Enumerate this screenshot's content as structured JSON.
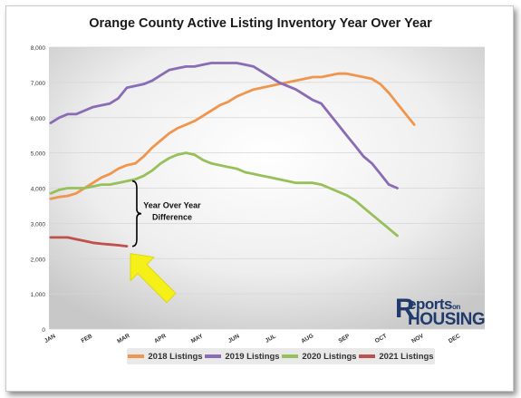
{
  "chart_data": {
    "type": "line",
    "title": "Orange County Active Listing Inventory Year Over Year",
    "x_tick_labels": [
      "JAN",
      "FEB",
      "MAR",
      "APR",
      "MAY",
      "JUN",
      "JUL",
      "AUG",
      "SEP",
      "OCT",
      "NOV",
      "DEC"
    ],
    "ylim": [
      0,
      8000
    ],
    "y_ticks": [
      0,
      1000,
      2000,
      3000,
      4000,
      5000,
      6000,
      7000,
      8000
    ],
    "y_tick_labels": [
      "0",
      "1,000",
      "2,000",
      "3,000",
      "4,000",
      "5,000",
      "6,000",
      "7,000",
      "8,000"
    ],
    "x_points_per_month": 4.35,
    "grid": true,
    "legend_position": "bottom",
    "series": [
      {
        "name": "2018 Listings",
        "color": "#f0954e",
        "values": [
          3700,
          3750,
          3780,
          3850,
          4000,
          4150,
          4300,
          4400,
          4550,
          4650,
          4700,
          4900,
          5150,
          5350,
          5550,
          5700,
          5800,
          5900,
          6050,
          6200,
          6350,
          6450,
          6600,
          6700,
          6800,
          6850,
          6900,
          6950,
          7000,
          7050,
          7100,
          7150,
          7150,
          7200,
          7250,
          7250,
          7200,
          7150,
          7100,
          6950,
          6700,
          6400,
          6100,
          5800
        ]
      },
      {
        "name": "2019 Listings",
        "color": "#8a6bb5",
        "values": [
          5850,
          6000,
          6100,
          6100,
          6200,
          6300,
          6350,
          6400,
          6550,
          6850,
          6900,
          6950,
          7050,
          7200,
          7350,
          7400,
          7450,
          7450,
          7500,
          7550,
          7550,
          7550,
          7550,
          7500,
          7450,
          7300,
          7150,
          7000,
          6900,
          6800,
          6650,
          6500,
          6400,
          6100,
          5800,
          5500,
          5200,
          4900,
          4700,
          4400,
          4100,
          4000
        ]
      },
      {
        "name": "2020 Listings",
        "color": "#97c05a",
        "values": [
          3850,
          3950,
          4000,
          4000,
          4000,
          4050,
          4100,
          4100,
          4150,
          4200,
          4250,
          4350,
          4500,
          4700,
          4850,
          4950,
          5000,
          4950,
          4800,
          4700,
          4650,
          4600,
          4550,
          4450,
          4400,
          4350,
          4300,
          4250,
          4200,
          4150,
          4150,
          4150,
          4100,
          4000,
          3900,
          3800,
          3650,
          3450,
          3250,
          3050,
          2850,
          2650
        ]
      },
      {
        "name": "2021 Listings",
        "color": "#c0504d",
        "values": [
          2600,
          2600,
          2600,
          2550,
          2500,
          2450,
          2420,
          2400,
          2380,
          2350
        ]
      }
    ],
    "annotation": "Year Over Year\nDifference"
  },
  "annotation_lines": [
    "Year Over Year",
    "Difference"
  ],
  "logo": {
    "line1": "eports",
    "line1_suffix": "on",
    "line2": "HOUSING",
    "initial": "R",
    "color": "#1f3a6b"
  },
  "arrow_color": "#f5f018"
}
